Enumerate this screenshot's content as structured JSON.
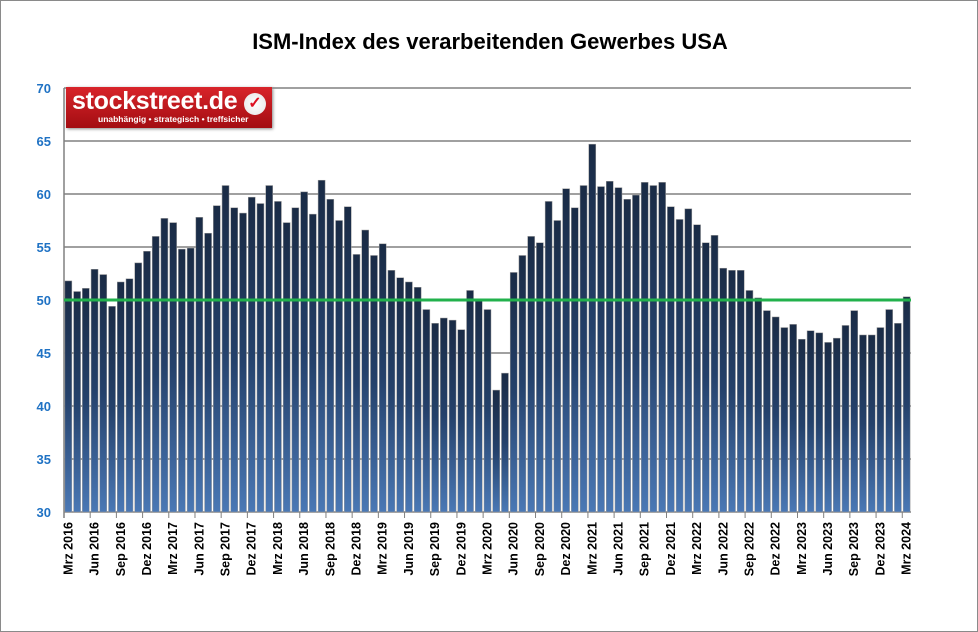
{
  "chart_data": {
    "type": "bar",
    "title": "ISM-Index des verarbeitenden Gewerbes USA",
    "xlabel": "",
    "ylabel": "",
    "ylim": [
      30,
      70
    ],
    "yticks": [
      30,
      35,
      40,
      45,
      50,
      55,
      60,
      65,
      70
    ],
    "grid": true,
    "reference_line": {
      "value": 50,
      "color": "#22b14c"
    },
    "bar_color": "#1f3a5f",
    "tick_color": "#1f72c4",
    "x_tick_labels": [
      "Mrz 2016",
      "Jun 2016",
      "Sep 2016",
      "Dez 2016",
      "Mrz 2017",
      "Jun 2017",
      "Sep 2017",
      "Dez 2017",
      "Mrz 2018",
      "Jun 2018",
      "Sep 2018",
      "Dez 2018",
      "Mrz 2019",
      "Jun 2019",
      "Sep 2019",
      "Dez 2019",
      "Mrz 2020",
      "Jun 2020",
      "Sep 2020",
      "Dez 2020",
      "Mrz 2021",
      "Jun 2021",
      "Sep 2021",
      "Dez 2021",
      "Mrz 2022",
      "Jun 2022",
      "Sep 2022",
      "Dez 2022",
      "Mrz 2023",
      "Jun 2023",
      "Sep 2023",
      "Dez 2023",
      "Mrz 2024"
    ],
    "values": [
      51.8,
      50.8,
      51.1,
      52.9,
      52.4,
      49.4,
      51.7,
      52.0,
      53.5,
      54.6,
      56.0,
      57.7,
      57.3,
      54.8,
      54.9,
      57.8,
      56.3,
      58.9,
      60.8,
      58.7,
      58.2,
      59.7,
      59.1,
      60.8,
      59.3,
      57.3,
      58.7,
      60.2,
      58.1,
      61.3,
      59.5,
      57.5,
      58.8,
      54.3,
      56.6,
      54.2,
      55.3,
      52.8,
      52.1,
      51.7,
      51.2,
      49.1,
      47.8,
      48.3,
      48.1,
      47.2,
      50.9,
      50.1,
      49.1,
      41.5,
      43.1,
      52.6,
      54.2,
      56.0,
      55.4,
      59.3,
      57.5,
      60.5,
      58.7,
      60.8,
      64.7,
      60.7,
      61.2,
      60.6,
      59.5,
      59.9,
      61.1,
      60.8,
      61.1,
      58.8,
      57.6,
      58.6,
      57.1,
      55.4,
      56.1,
      53.0,
      52.8,
      52.8,
      50.9,
      50.2,
      49.0,
      48.4,
      47.4,
      47.7,
      46.3,
      47.1,
      46.9,
      46.0,
      46.4,
      47.6,
      49.0,
      46.7,
      46.7,
      47.4,
      49.1,
      47.8,
      50.3
    ]
  },
  "logo": {
    "name": "stockstreet.de",
    "tagline": "unabhängig • strategisch • treffsicher"
  }
}
